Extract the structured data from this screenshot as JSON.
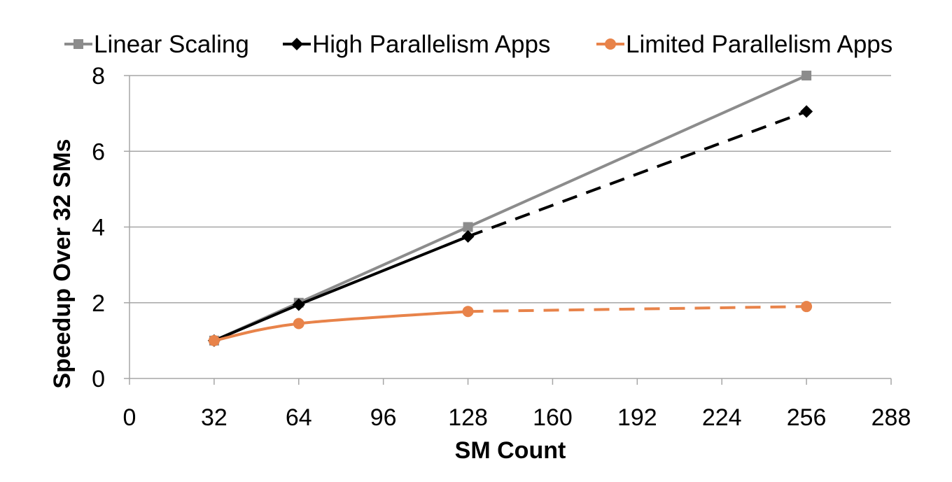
{
  "chart_data": {
    "type": "line",
    "title": "",
    "xlabel": "SM Count",
    "ylabel": "Speedup Over 32 SMs",
    "xlim": [
      0,
      288
    ],
    "ylim": [
      0,
      8
    ],
    "xticks": [
      0,
      32,
      64,
      96,
      128,
      160,
      192,
      224,
      256,
      288
    ],
    "yticks": [
      0,
      2,
      4,
      6,
      8
    ],
    "grid": "horizontal",
    "legend_position": "top",
    "series": [
      {
        "name": "Linear Scaling",
        "color": "#8c8c8c",
        "marker": "square",
        "x": [
          32,
          64,
          128,
          256
        ],
        "y": [
          1,
          2,
          4,
          8
        ],
        "dashed_from_index": null
      },
      {
        "name": "High Parallelism Apps",
        "color": "#000000",
        "marker": "diamond",
        "x": [
          32,
          64,
          128,
          256
        ],
        "y": [
          1,
          1.95,
          3.75,
          7.05
        ],
        "dashed_from_index": 2
      },
      {
        "name": "Limited Parallelism Apps",
        "color": "#e8834a",
        "marker": "circle",
        "x": [
          32,
          64,
          128,
          256
        ],
        "y": [
          1,
          1.45,
          1.77,
          1.9
        ],
        "dashed_from_index": 2
      }
    ]
  }
}
